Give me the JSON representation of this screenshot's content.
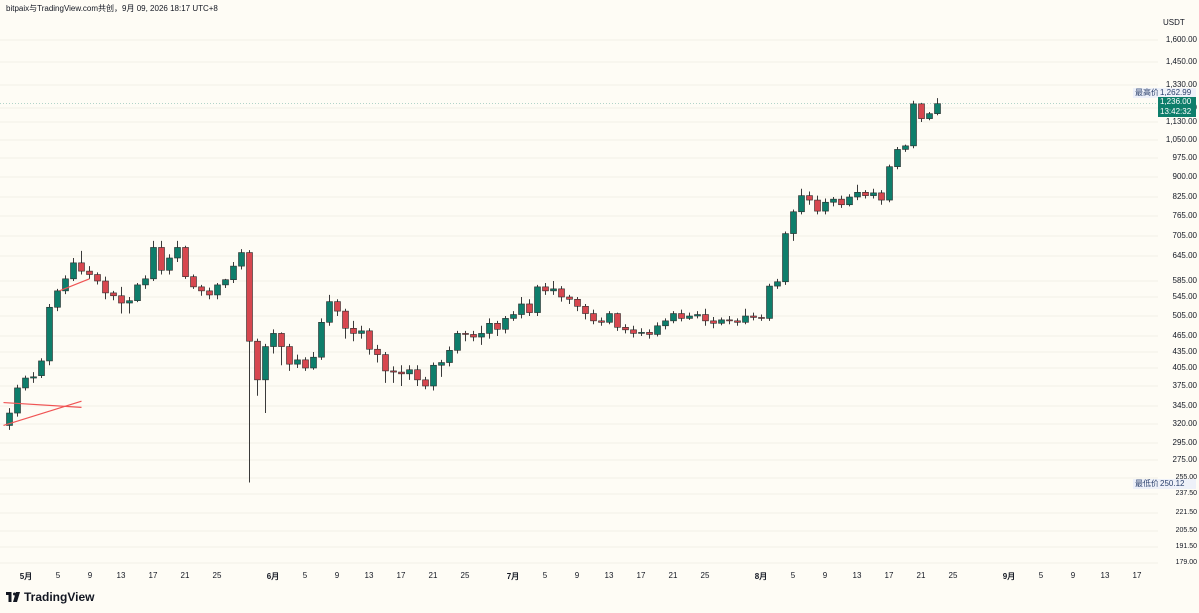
{
  "header": {
    "text": "bitpaix与TradingView.com共创，9月 09, 2026 18:17 UTC+8"
  },
  "price_axis": {
    "unit": "USDT",
    "ticks": [
      "1,600.00",
      "1,450.00",
      "1,330.00",
      "1,215.00",
      "1,130.00",
      "1,050.00",
      "975.00",
      "900.00",
      "825.00",
      "765.00",
      "705.00",
      "645.00",
      "585.00",
      "545.00",
      "505.00",
      "465.00",
      "435.00",
      "405.00",
      "375.00",
      "345.00",
      "320.00",
      "295.00",
      "275.00",
      "255.00",
      "237.50",
      "221.50",
      "205.50",
      "191.50",
      "179.00"
    ]
  },
  "time_axis": {
    "labels": [
      "5月",
      "5",
      "9",
      "13",
      "17",
      "21",
      "25",
      "6月",
      "5",
      "9",
      "13",
      "17",
      "21",
      "25",
      "7月",
      "5",
      "9",
      "13",
      "17",
      "21",
      "25",
      "8月",
      "5",
      "9",
      "13",
      "17",
      "21",
      "25",
      "9月",
      "5",
      "9",
      "13",
      "17"
    ],
    "month_labels": [
      "5月",
      "6月",
      "7月",
      "8月",
      "9月"
    ]
  },
  "markers": {
    "high_label": "最高价",
    "high_value": "1,262.99",
    "low_label": "最低价",
    "low_value": "250.12",
    "current_price": "1,236.00",
    "countdown": "13:42:32"
  },
  "colors": {
    "up": "#0e7e6b",
    "down": "#d7474f",
    "background": "#fefcf5",
    "wedge": "#f05454"
  },
  "footer": {
    "brand": "TradingView"
  },
  "chart_data": {
    "type": "candlestick",
    "ylabel": "USDT",
    "ylim": [
      179,
      1600
    ],
    "y_scale": "log",
    "candles": [
      [
        318,
        335,
        312,
        342
      ],
      [
        335,
        372,
        330,
        377
      ],
      [
        372,
        388,
        368,
        392
      ],
      [
        388,
        390,
        380,
        398
      ],
      [
        392,
        418,
        388,
        423
      ],
      [
        418,
        523,
        410,
        530
      ],
      [
        523,
        560,
        515,
        565
      ],
      [
        560,
        590,
        552,
        598
      ],
      [
        590,
        628,
        585,
        640
      ],
      [
        628,
        608,
        600,
        660
      ],
      [
        608,
        600,
        590,
        620
      ],
      [
        600,
        585,
        576,
        605
      ],
      [
        585,
        555,
        540,
        595
      ],
      [
        555,
        548,
        538,
        560
      ],
      [
        548,
        532,
        510,
        570
      ],
      [
        532,
        537,
        510,
        545
      ],
      [
        537,
        575,
        534,
        580
      ],
      [
        575,
        590,
        565,
        598
      ],
      [
        590,
        670,
        585,
        690
      ],
      [
        670,
        610,
        600,
        690
      ],
      [
        610,
        640,
        600,
        650
      ],
      [
        640,
        670,
        630,
        690
      ],
      [
        670,
        595,
        590,
        675
      ],
      [
        595,
        570,
        565,
        600
      ],
      [
        570,
        560,
        548,
        575
      ],
      [
        560,
        550,
        540,
        568
      ],
      [
        550,
        575,
        540,
        580
      ],
      [
        575,
        588,
        567,
        590
      ],
      [
        588,
        620,
        580,
        630
      ],
      [
        620,
        655,
        612,
        665
      ],
      [
        655,
        455,
        250,
        662
      ],
      [
        455,
        385,
        360,
        460
      ],
      [
        385,
        445,
        335,
        450
      ],
      [
        445,
        470,
        432,
        478
      ],
      [
        470,
        445,
        410,
        472
      ],
      [
        445,
        412,
        400,
        450
      ],
      [
        412,
        420,
        405,
        430
      ],
      [
        420,
        405,
        400,
        425
      ],
      [
        405,
        425,
        402,
        435
      ],
      [
        425,
        492,
        420,
        500
      ],
      [
        492,
        535,
        485,
        550
      ],
      [
        535,
        515,
        505,
        540
      ],
      [
        515,
        480,
        460,
        520
      ],
      [
        480,
        470,
        455,
        495
      ],
      [
        470,
        475,
        460,
        485
      ],
      [
        475,
        440,
        430,
        480
      ],
      [
        440,
        430,
        415,
        448
      ],
      [
        430,
        400,
        380,
        435
      ],
      [
        400,
        398,
        380,
        408
      ],
      [
        398,
        395,
        375,
        410
      ],
      [
        395,
        402,
        385,
        410
      ],
      [
        402,
        385,
        375,
        410
      ],
      [
        385,
        375,
        370,
        390
      ],
      [
        375,
        410,
        368,
        415
      ],
      [
        410,
        415,
        390,
        420
      ],
      [
        415,
        438,
        408,
        445
      ],
      [
        438,
        470,
        432,
        475
      ],
      [
        470,
        468,
        455,
        475
      ],
      [
        468,
        463,
        455,
        475
      ],
      [
        463,
        470,
        448,
        485
      ],
      [
        470,
        490,
        460,
        500
      ],
      [
        490,
        478,
        465,
        495
      ],
      [
        478,
        500,
        470,
        505
      ],
      [
        500,
        508,
        495,
        515
      ],
      [
        508,
        530,
        500,
        545
      ],
      [
        530,
        512,
        505,
        540
      ],
      [
        512,
        570,
        505,
        575
      ],
      [
        570,
        560,
        550,
        580
      ],
      [
        560,
        565,
        550,
        585
      ],
      [
        565,
        545,
        535,
        572
      ],
      [
        545,
        540,
        530,
        550
      ],
      [
        540,
        525,
        515,
        545
      ],
      [
        525,
        510,
        498,
        530
      ],
      [
        510,
        495,
        488,
        518
      ],
      [
        495,
        492,
        485,
        502
      ],
      [
        492,
        510,
        488,
        515
      ],
      [
        510,
        482,
        475,
        512
      ],
      [
        482,
        477,
        470,
        488
      ],
      [
        477,
        470,
        462,
        485
      ],
      [
        470,
        472,
        465,
        480
      ],
      [
        472,
        468,
        460,
        478
      ],
      [
        468,
        485,
        464,
        492
      ],
      [
        485,
        495,
        478,
        500
      ],
      [
        495,
        510,
        490,
        515
      ],
      [
        510,
        500,
        494,
        518
      ],
      [
        500,
        505,
        497,
        512
      ],
      [
        505,
        508,
        500,
        515
      ],
      [
        508,
        495,
        485,
        520
      ],
      [
        495,
        490,
        480,
        503
      ],
      [
        490,
        497,
        486,
        502
      ],
      [
        497,
        495,
        488,
        505
      ],
      [
        495,
        492,
        485,
        500
      ],
      [
        492,
        505,
        488,
        520
      ],
      [
        505,
        502,
        496,
        512
      ],
      [
        502,
        500,
        495,
        508
      ],
      [
        500,
        572,
        495,
        578
      ],
      [
        572,
        583,
        565,
        590
      ],
      [
        583,
        712,
        575,
        718
      ],
      [
        712,
        778,
        690,
        785
      ],
      [
        778,
        830,
        770,
        855
      ],
      [
        830,
        815,
        800,
        845
      ],
      [
        815,
        780,
        770,
        830
      ],
      [
        780,
        808,
        770,
        820
      ],
      [
        808,
        818,
        795,
        825
      ],
      [
        818,
        800,
        790,
        830
      ],
      [
        800,
        825,
        795,
        835
      ],
      [
        825,
        842,
        815,
        870
      ],
      [
        842,
        830,
        820,
        850
      ],
      [
        830,
        840,
        820,
        855
      ],
      [
        840,
        815,
        800,
        850
      ],
      [
        815,
        940,
        808,
        948
      ],
      [
        940,
        1010,
        930,
        1020
      ],
      [
        1010,
        1025,
        1000,
        1030
      ],
      [
        1025,
        1235,
        1015,
        1250
      ],
      [
        1235,
        1150,
        1130,
        1240
      ],
      [
        1150,
        1180,
        1140,
        1190
      ],
      [
        1180,
        1236,
        1170,
        1262.99
      ]
    ],
    "trend_lines": [
      {
        "from": [
          0,
          318
        ],
        "to": [
          9,
          352
        ]
      },
      {
        "from": [
          0,
          350
        ],
        "to": [
          9,
          343
        ]
      },
      {
        "from": [
          7,
          560
        ],
        "to": [
          10,
          590
        ]
      }
    ]
  }
}
